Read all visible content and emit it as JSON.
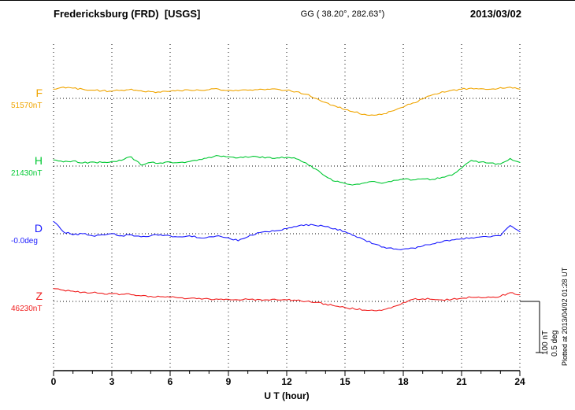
{
  "header": {
    "station": "Fredericksburg (FRD)  [USGS]",
    "geo": "GG ( 38.20°, 282.63°)",
    "date": "2013/03/02"
  },
  "axis": {
    "xlabel": "U T (hour)",
    "ticks": [
      "0",
      "3",
      "6",
      "9",
      "12",
      "15",
      "18",
      "21",
      "24"
    ]
  },
  "scalebar": {
    "nt_label": "100 nT",
    "deg_label": "0.5 deg"
  },
  "footer_note": "Plotted at 2013/04/02 01:28 UT",
  "chart_data": {
    "type": "line",
    "title": "Fredericksburg (FRD) [USGS] magnetogram 2013/03/02",
    "xlabel": "U T (hour)",
    "xlim": [
      0,
      24
    ],
    "x_ticks": [
      0,
      3,
      6,
      9,
      12,
      15,
      18,
      21,
      24
    ],
    "grid": "dotted vertical gridlines every 3 hours; dotted horizontal baseline for each trace",
    "legend_position": "left margin (trace letter and baseline value per trace)",
    "scale_bar": {
      "nT_per_div": 100,
      "deg_per_div": 0.5
    },
    "x": [
      0,
      0.5,
      1,
      1.5,
      2,
      2.5,
      3,
      3.5,
      4,
      4.5,
      5,
      5.5,
      6,
      6.5,
      7,
      7.5,
      8,
      8.5,
      9,
      9.5,
      10,
      10.5,
      11,
      11.5,
      12,
      12.5,
      13,
      13.5,
      14,
      14.5,
      15,
      15.5,
      16,
      16.5,
      17,
      17.5,
      18,
      18.5,
      19,
      19.5,
      20,
      20.5,
      21,
      21.5,
      22,
      22.5,
      23,
      23.5,
      24
    ],
    "series": [
      {
        "name": "F",
        "units": "nT",
        "color": "#f0a500",
        "baseline": 51570,
        "baseline_label": "51570nT",
        "values": [
          51588,
          51592,
          51590,
          51588,
          51586,
          51585,
          51584,
          51586,
          51588,
          51585,
          51583,
          51582,
          51584,
          51585,
          51586,
          51586,
          51587,
          51588,
          51586,
          51585,
          51586,
          51587,
          51588,
          51588,
          51586,
          51583,
          51578,
          51570,
          51562,
          51555,
          51548,
          51543,
          51539,
          51537,
          51540,
          51546,
          51553,
          51561,
          51569,
          51577,
          51583,
          51586,
          51588,
          51590,
          51589,
          51588,
          51591,
          51592,
          51588
        ]
      },
      {
        "name": "H",
        "units": "nT",
        "color": "#00c832",
        "baseline": 21430,
        "baseline_label": "21430nT",
        "values": [
          21442,
          21438,
          21440,
          21436,
          21438,
          21437,
          21439,
          21441,
          21448,
          21432,
          21437,
          21436,
          21438,
          21437,
          21439,
          21443,
          21447,
          21450,
          21448,
          21446,
          21447,
          21448,
          21447,
          21446,
          21447,
          21444,
          21436,
          21424,
          21410,
          21400,
          21396,
          21394,
          21397,
          21400,
          21397,
          21402,
          21404,
          21403,
          21405,
          21404,
          21408,
          21412,
          21426,
          21441,
          21438,
          21436,
          21434,
          21445,
          21437
        ]
      },
      {
        "name": "D",
        "units": "deg",
        "color": "#1a1aff",
        "baseline": 0,
        "baseline_label": "-0.0deg",
        "values": [
          0.12,
          0.02,
          -0.01,
          0.0,
          -0.02,
          -0.01,
          0.0,
          -0.02,
          -0.01,
          -0.03,
          -0.02,
          -0.01,
          -0.02,
          -0.03,
          -0.02,
          -0.04,
          -0.03,
          -0.02,
          -0.04,
          -0.07,
          -0.03,
          0.01,
          0.02,
          0.03,
          0.05,
          0.07,
          0.09,
          0.08,
          0.07,
          0.05,
          0.02,
          -0.02,
          -0.06,
          -0.1,
          -0.13,
          -0.15,
          -0.15,
          -0.14,
          -0.12,
          -0.1,
          -0.08,
          -0.06,
          -0.05,
          -0.04,
          -0.03,
          -0.03,
          -0.02,
          0.08,
          0.02
        ]
      },
      {
        "name": "Z",
        "units": "nT",
        "color": "#f02020",
        "baseline": 46230,
        "baseline_label": "46230nT",
        "values": [
          46255,
          46252,
          46250,
          46248,
          46247,
          46246,
          46245,
          46244,
          46243,
          46241,
          46240,
          46239,
          46238,
          46237,
          46236,
          46236,
          46235,
          46234,
          46234,
          46233,
          46234,
          46234,
          46233,
          46233,
          46233,
          46232,
          46230,
          46228,
          46225,
          46221,
          46218,
          46215,
          46213,
          46212,
          46214,
          46220,
          46228,
          46234,
          46235,
          46234,
          46233,
          46234,
          46236,
          46238,
          46237,
          46238,
          46240,
          46247,
          46243
        ]
      }
    ]
  }
}
